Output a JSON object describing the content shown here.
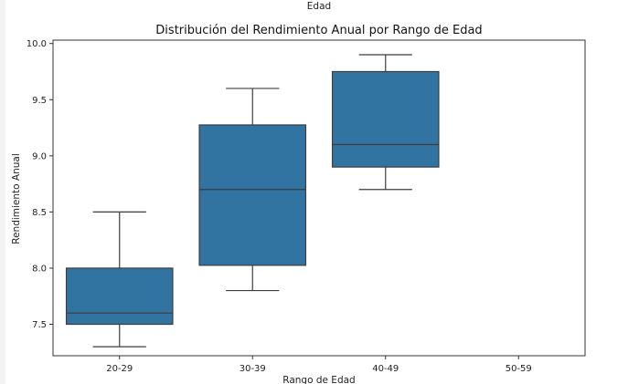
{
  "header_text": "Edad",
  "chart_data": {
    "type": "box",
    "title": "Distribución del Rendimiento Anual por Rango de Edad",
    "xlabel": "Rango de Edad",
    "ylabel": "Rendimiento Anual",
    "ylim": [
      7.22,
      10.03
    ],
    "yticks": [
      "7.5",
      "8.0",
      "8.5",
      "9.0",
      "9.5",
      "10.0"
    ],
    "categories": [
      "20-29",
      "30-39",
      "40-49",
      "50-59"
    ],
    "boxes": [
      {
        "category": "20-29",
        "min": 7.3,
        "q1": 7.5,
        "median": 7.6,
        "q3": 8.0,
        "max": 8.5
      },
      {
        "category": "30-39",
        "min": 7.8,
        "q1": 8.025,
        "median": 8.7,
        "q3": 9.275,
        "max": 9.6
      },
      {
        "category": "40-49",
        "min": 8.7,
        "q1": 8.9,
        "median": 9.1,
        "q3": 9.75,
        "max": 9.9
      },
      {
        "category": "50-59",
        "min": null,
        "q1": null,
        "median": null,
        "q3": null,
        "max": null
      }
    ],
    "box_color": "#3274a1",
    "line_color": "#3d3d3d",
    "grid": false
  }
}
